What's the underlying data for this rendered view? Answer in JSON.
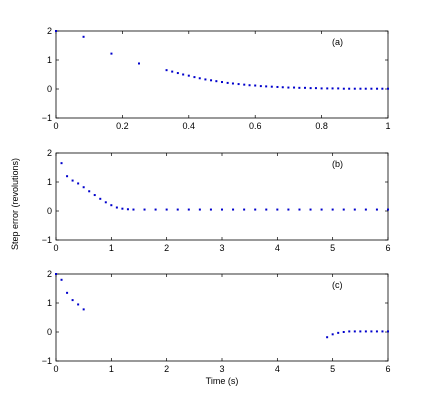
{
  "chart_data": [
    {
      "type": "scatter",
      "label": "(a)",
      "xlim": [
        0,
        1
      ],
      "ylim": [
        -1,
        2
      ],
      "xticks": [
        "0",
        "0.2",
        "0.4",
        "0.6",
        "0.8",
        "1"
      ],
      "yticks": [
        "−1",
        "0",
        "1",
        "2"
      ],
      "marker_color": "#0000cc",
      "grid": false,
      "points": [
        [
          0.0,
          2.0
        ],
        [
          0.083,
          1.8
        ],
        [
          0.167,
          1.22
        ],
        [
          0.25,
          0.88
        ],
        [
          0.333,
          0.65
        ],
        [
          0.35,
          0.6
        ],
        [
          0.367,
          0.55
        ],
        [
          0.383,
          0.5
        ],
        [
          0.4,
          0.46
        ],
        [
          0.417,
          0.41
        ],
        [
          0.433,
          0.37
        ],
        [
          0.45,
          0.33
        ],
        [
          0.467,
          0.3
        ],
        [
          0.483,
          0.27
        ],
        [
          0.5,
          0.24
        ],
        [
          0.517,
          0.21
        ],
        [
          0.533,
          0.19
        ],
        [
          0.55,
          0.17
        ],
        [
          0.567,
          0.15
        ],
        [
          0.583,
          0.13
        ],
        [
          0.6,
          0.12
        ],
        [
          0.617,
          0.1
        ],
        [
          0.633,
          0.09
        ],
        [
          0.65,
          0.08
        ],
        [
          0.667,
          0.07
        ],
        [
          0.683,
          0.06
        ],
        [
          0.7,
          0.05
        ],
        [
          0.717,
          0.05
        ],
        [
          0.733,
          0.04
        ],
        [
          0.75,
          0.04
        ],
        [
          0.767,
          0.03
        ],
        [
          0.783,
          0.03
        ],
        [
          0.8,
          0.02
        ],
        [
          0.817,
          0.02
        ],
        [
          0.833,
          0.02
        ],
        [
          0.85,
          0.02
        ],
        [
          0.867,
          0.01
        ],
        [
          0.883,
          0.01
        ],
        [
          0.9,
          0.01
        ],
        [
          0.917,
          0.01
        ],
        [
          0.933,
          0.01
        ],
        [
          0.95,
          0.01
        ],
        [
          0.967,
          0.01
        ],
        [
          0.983,
          0.01
        ],
        [
          1.0,
          0.01
        ]
      ]
    },
    {
      "type": "scatter",
      "label": "(b)",
      "xlim": [
        0,
        6
      ],
      "ylim": [
        -1,
        2
      ],
      "xticks": [
        "0",
        "1",
        "2",
        "3",
        "4",
        "5",
        "6"
      ],
      "yticks": [
        "−1",
        "0",
        "1",
        "2"
      ],
      "marker_color": "#0000cc",
      "grid": false,
      "points": [
        [
          0.1,
          1.65
        ],
        [
          0.2,
          1.2
        ],
        [
          0.3,
          1.05
        ],
        [
          0.4,
          0.95
        ],
        [
          0.5,
          0.82
        ],
        [
          0.6,
          0.68
        ],
        [
          0.7,
          0.55
        ],
        [
          0.8,
          0.42
        ],
        [
          0.9,
          0.3
        ],
        [
          1.0,
          0.2
        ],
        [
          1.1,
          0.12
        ],
        [
          1.2,
          0.08
        ],
        [
          1.3,
          0.06
        ],
        [
          1.4,
          0.05
        ],
        [
          1.6,
          0.05
        ],
        [
          1.8,
          0.05
        ],
        [
          2.0,
          0.05
        ],
        [
          2.2,
          0.05
        ],
        [
          2.4,
          0.05
        ],
        [
          2.6,
          0.05
        ],
        [
          2.8,
          0.05
        ],
        [
          3.0,
          0.05
        ],
        [
          3.2,
          0.05
        ],
        [
          3.4,
          0.05
        ],
        [
          3.6,
          0.05
        ],
        [
          3.8,
          0.05
        ],
        [
          4.0,
          0.05
        ],
        [
          4.2,
          0.05
        ],
        [
          4.4,
          0.05
        ],
        [
          4.6,
          0.05
        ],
        [
          4.8,
          0.05
        ],
        [
          5.0,
          0.05
        ],
        [
          5.2,
          0.05
        ],
        [
          5.4,
          0.05
        ],
        [
          5.6,
          0.05
        ],
        [
          5.8,
          0.05
        ],
        [
          6.0,
          0.05
        ]
      ]
    },
    {
      "type": "scatter",
      "label": "(c)",
      "xlim": [
        0,
        6
      ],
      "ylim": [
        -1,
        2
      ],
      "xticks": [
        "0",
        "1",
        "2",
        "3",
        "4",
        "5",
        "6"
      ],
      "yticks": [
        "−1",
        "0",
        "1",
        "2"
      ],
      "xlabel": "Time (s)",
      "marker_color": "#0000cc",
      "grid": false,
      "points": [
        [
          0.0,
          2.0
        ],
        [
          0.1,
          1.8
        ],
        [
          0.2,
          1.35
        ],
        [
          0.3,
          1.1
        ],
        [
          0.4,
          0.95
        ],
        [
          0.5,
          0.78
        ],
        [
          4.9,
          -0.18
        ],
        [
          5.0,
          -0.08
        ],
        [
          5.1,
          -0.03
        ],
        [
          5.2,
          0.0
        ],
        [
          5.3,
          0.02
        ],
        [
          5.4,
          0.02
        ],
        [
          5.5,
          0.02
        ],
        [
          5.6,
          0.02
        ],
        [
          5.7,
          0.02
        ],
        [
          5.8,
          0.02
        ],
        [
          5.9,
          0.02
        ],
        [
          6.0,
          0.02
        ]
      ]
    }
  ],
  "shared": {
    "ylabel": "Step error (revolutions)"
  }
}
